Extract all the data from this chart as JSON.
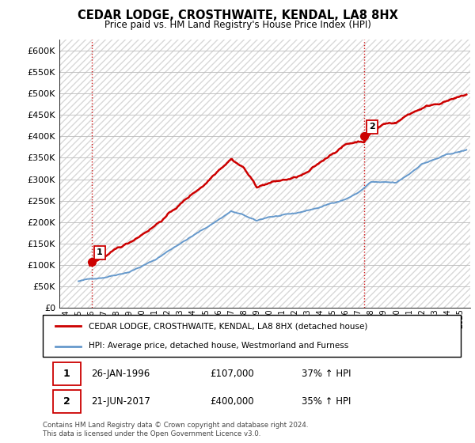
{
  "title": "CEDAR LODGE, CROSTHWAITE, KENDAL, LA8 8HX",
  "subtitle": "Price paid vs. HM Land Registry's House Price Index (HPI)",
  "ylabel_ticks": [
    "£0",
    "£50K",
    "£100K",
    "£150K",
    "£200K",
    "£250K",
    "£300K",
    "£350K",
    "£400K",
    "£450K",
    "£500K",
    "£550K",
    "£600K"
  ],
  "ylim": [
    0,
    625000
  ],
  "xlim_start": 1993.5,
  "xlim_end": 2025.8,
  "property_color": "#cc0000",
  "hpi_color": "#6699cc",
  "vline_color": "#cc0000",
  "point1_x": 1996.07,
  "point1_y": 107000,
  "point1_label": "1",
  "point2_x": 2017.47,
  "point2_y": 400000,
  "point2_label": "2",
  "legend_property": "CEDAR LODGE, CROSTHWAITE, KENDAL, LA8 8HX (detached house)",
  "legend_hpi": "HPI: Average price, detached house, Westmorland and Furness",
  "table_rows": [
    {
      "num": "1",
      "date": "26-JAN-1996",
      "price": "£107,000",
      "change": "37% ↑ HPI"
    },
    {
      "num": "2",
      "date": "21-JUN-2017",
      "price": "£400,000",
      "change": "35% ↑ HPI"
    }
  ],
  "footnote": "Contains HM Land Registry data © Crown copyright and database right 2024.\nThis data is licensed under the Open Government Licence v3.0.",
  "background_color": "#ffffff",
  "grid_color": "#bbbbbb",
  "hatch_color": "#cccccc"
}
